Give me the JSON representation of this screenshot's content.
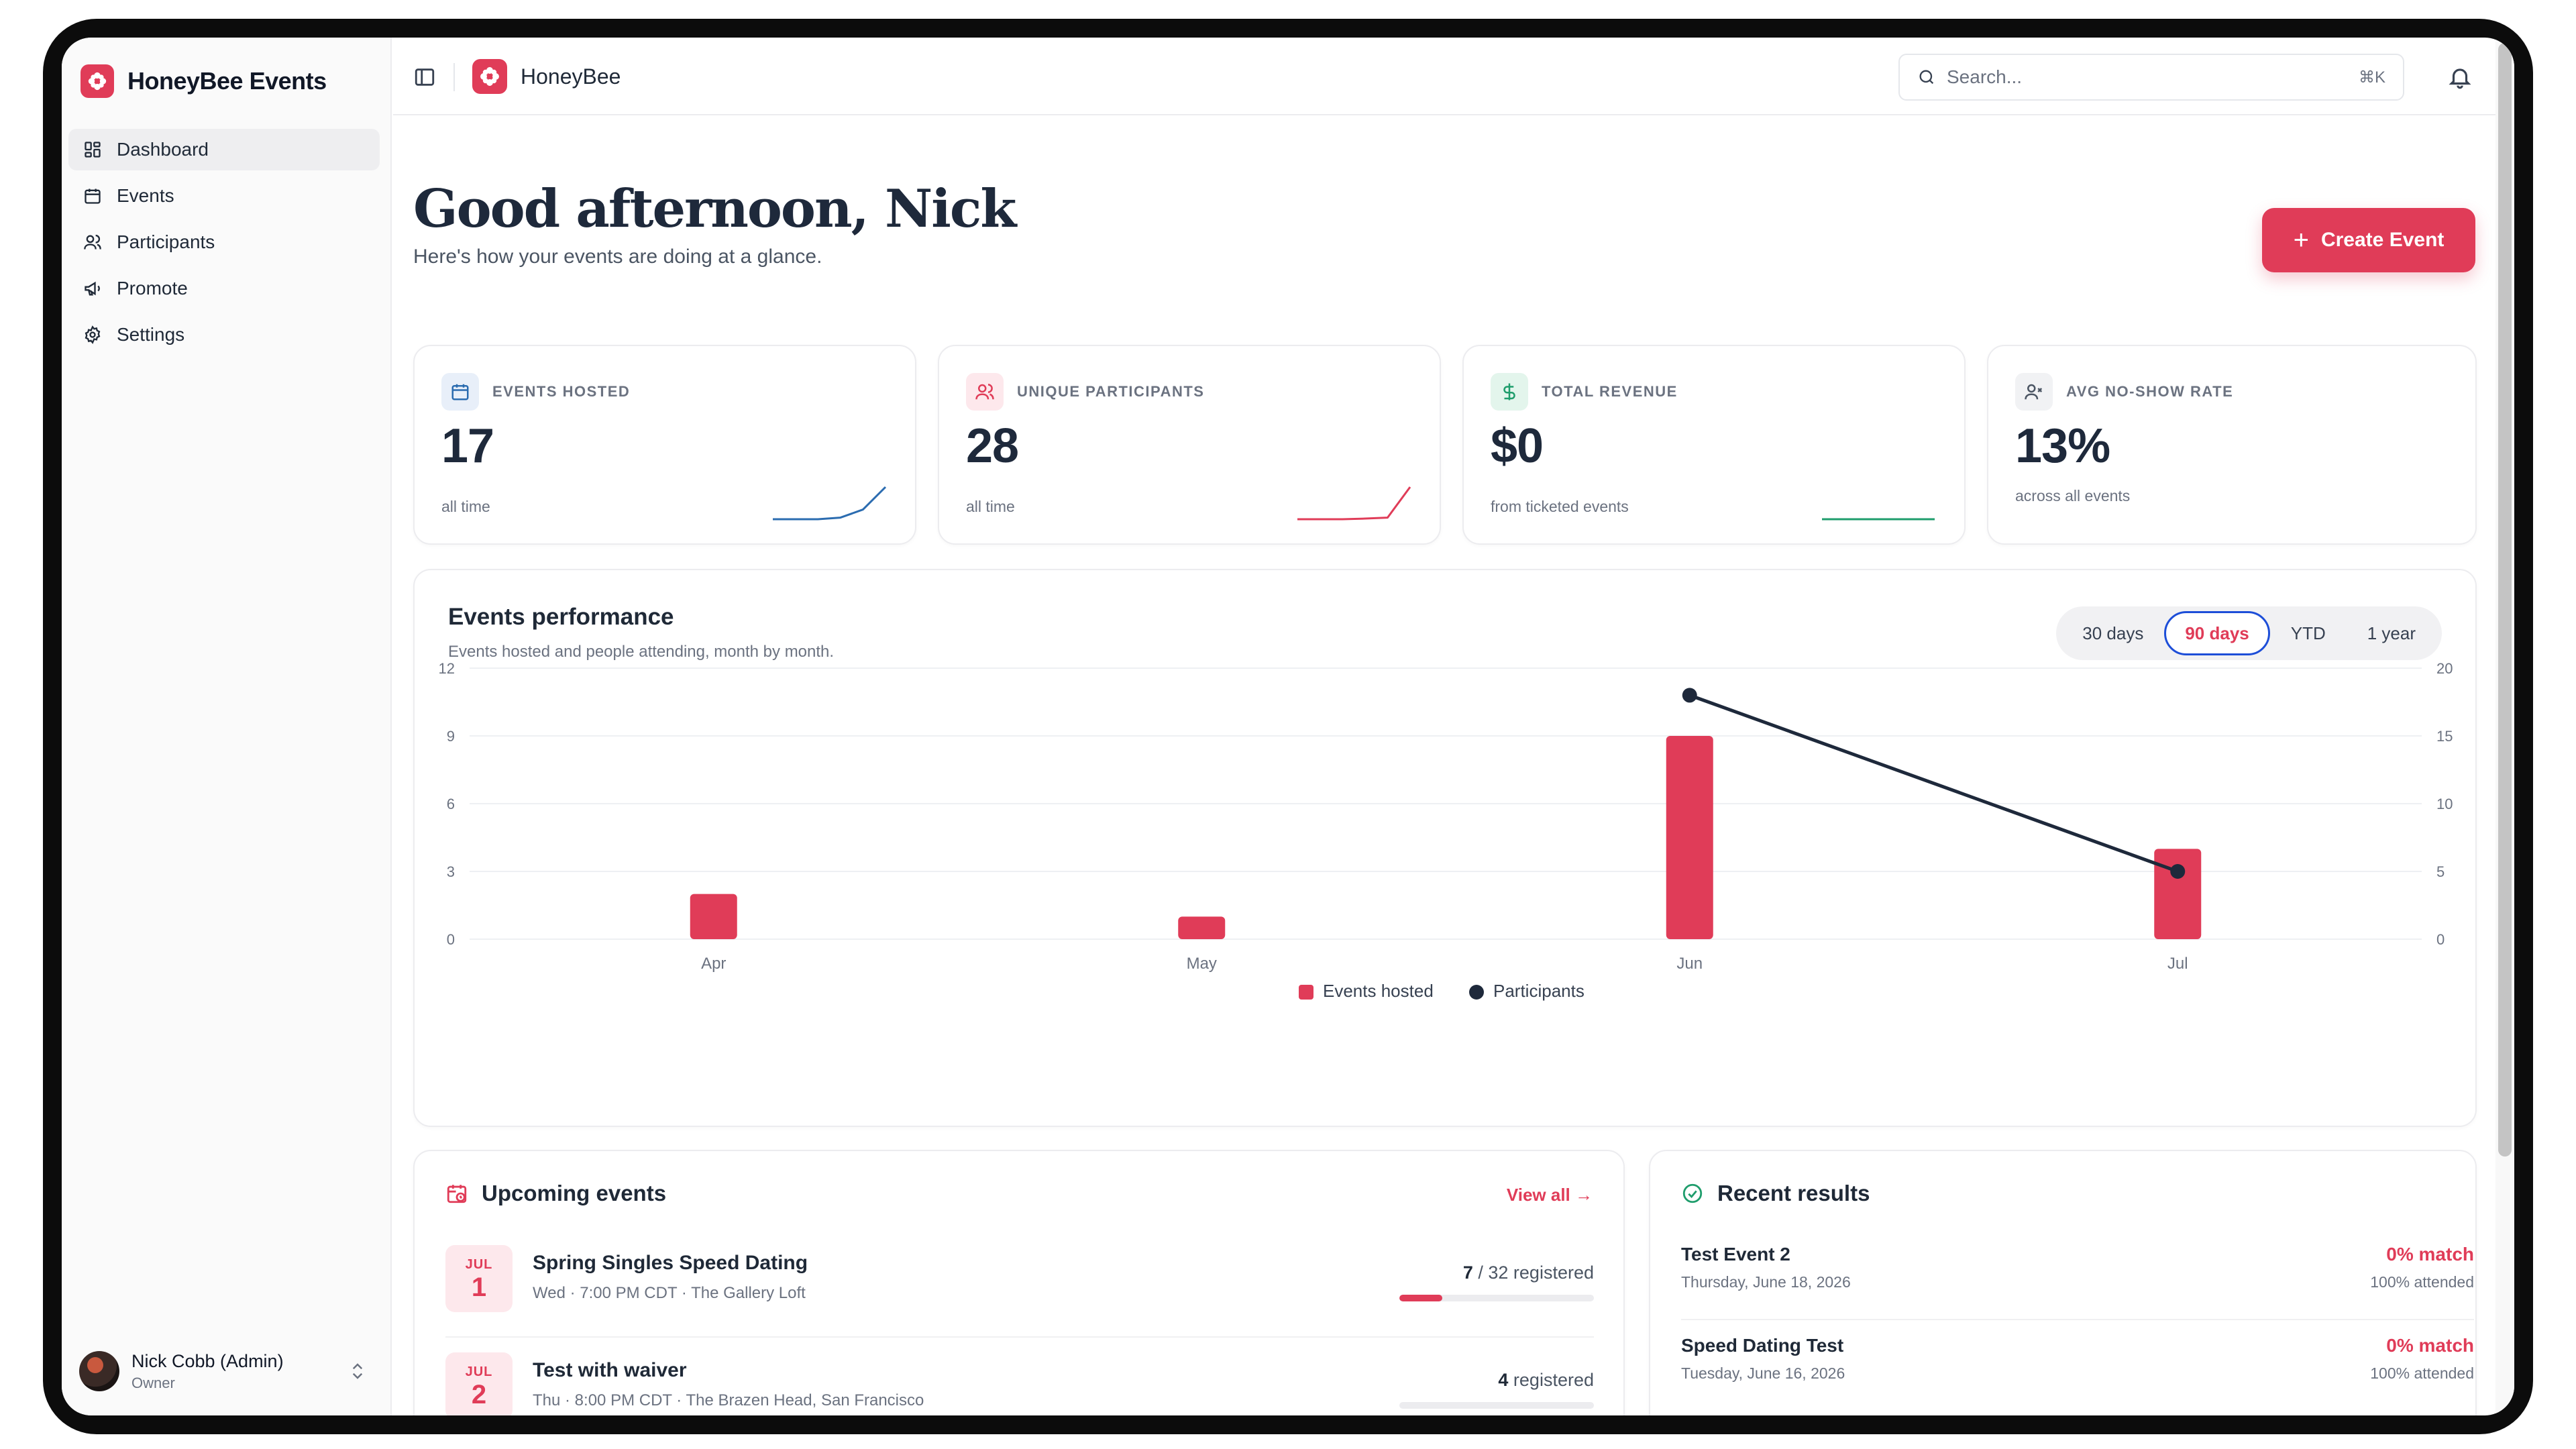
{
  "app": {
    "name": "HoneyBee Events",
    "short_name": "HoneyBee"
  },
  "colors": {
    "accent": "#e03c58",
    "ink": "#1e293b",
    "blue": "#2b6cb0",
    "green": "#1f9d6c",
    "ring": "#1d4ed8"
  },
  "sidebar": {
    "items": [
      {
        "label": "Dashboard",
        "icon": "grid-icon",
        "active": true
      },
      {
        "label": "Events",
        "icon": "calendar-icon"
      },
      {
        "label": "Participants",
        "icon": "users-icon"
      },
      {
        "label": "Promote",
        "icon": "megaphone-icon"
      },
      {
        "label": "Settings",
        "icon": "gear-icon"
      }
    ],
    "user": {
      "name": "Nick Cobb (Admin)",
      "role": "Owner"
    }
  },
  "topbar": {
    "search_placeholder": "Search...",
    "search_shortcut": "⌘K",
    "icons": [
      "sidebar-toggle-icon",
      "bell-icon",
      "help-icon"
    ]
  },
  "header": {
    "greeting": "Good afternoon, Nick",
    "subtitle": "Here's how your events are doing at a glance.",
    "create_label": "Create Event"
  },
  "stats": [
    {
      "label": "EVENTS HOSTED",
      "value": "17",
      "sub": "all time",
      "icon": "calendar-icon",
      "trend": [
        0,
        0,
        0,
        0.05,
        0.3,
        1
      ]
    },
    {
      "label": "UNIQUE PARTICIPANTS",
      "value": "28",
      "sub": "all time",
      "icon": "users-icon",
      "trend": [
        0,
        0,
        0,
        0.02,
        0.05,
        1
      ]
    },
    {
      "label": "TOTAL REVENUE",
      "value": "$0",
      "sub": "from ticketed events",
      "icon": "dollar-icon",
      "trend": [
        0,
        0,
        0,
        0,
        0,
        0
      ]
    },
    {
      "label": "AVG NO-SHOW RATE",
      "value": "13%",
      "sub": "across all events",
      "icon": "user-x-icon",
      "trend": null
    }
  ],
  "performance": {
    "title": "Events performance",
    "subtitle": "Events hosted and people attending, month by month.",
    "ranges": [
      "30 days",
      "90 days",
      "YTD",
      "1 year"
    ],
    "active_range": "90 days"
  },
  "chart_data": {
    "type": "bar",
    "categories": [
      "Apr",
      "May",
      "Jun",
      "Jul"
    ],
    "series": [
      {
        "name": "Events hosted",
        "type": "bar",
        "axis": "left",
        "values": [
          2,
          1,
          9,
          4
        ]
      },
      {
        "name": "Participants",
        "type": "line",
        "axis": "right",
        "values": [
          null,
          null,
          18,
          5
        ]
      }
    ],
    "ylim_left": [
      0,
      12
    ],
    "yticks_left": [
      "0",
      "3",
      "6",
      "9",
      "12"
    ],
    "ylim_right": [
      0,
      20
    ],
    "yticks_right": [
      "0",
      "5",
      "10",
      "15",
      "20"
    ],
    "grid": "horizontal",
    "legend": "bottom-center"
  },
  "upcoming": {
    "title": "Upcoming events",
    "view_all": "View all →",
    "items": [
      {
        "month": "JUL",
        "day": "1",
        "title": "Spring Singles Speed Dating",
        "meta": "Wed · 7:00 PM CDT · The Gallery Loft",
        "registered": "7",
        "capacity": "/ 32",
        "reg_label": "registered",
        "fill": 0.22
      },
      {
        "month": "JUL",
        "day": "2",
        "title": "Test with waiver",
        "meta": "Thu · 8:00 PM CDT · The Brazen Head, San Francisco",
        "registered": "4",
        "capacity": "",
        "reg_label": "registered",
        "fill": 0
      }
    ]
  },
  "results": {
    "title": "Recent results",
    "items": [
      {
        "title": "Test Event 2",
        "date": "Thursday, June 18, 2026",
        "match": "0% match",
        "attended": "100% attended"
      },
      {
        "title": "Speed Dating Test",
        "date": "Tuesday, June 16, 2026",
        "match": "0% match",
        "attended": "100% attended"
      }
    ]
  }
}
